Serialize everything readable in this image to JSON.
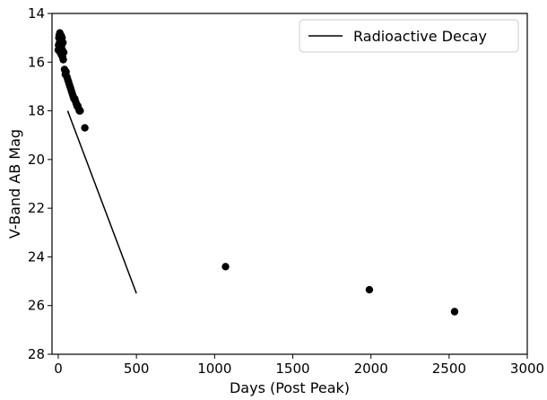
{
  "chart_data": {
    "type": "scatter",
    "title": "",
    "xlabel": "Days (Post Peak)",
    "ylabel": "V-Band AB Mag",
    "xlim": [
      -40,
      3000
    ],
    "ylim": [
      28,
      14
    ],
    "y_axis_inverted": true,
    "grid": false,
    "legend_position": "top-right",
    "x_ticks": [
      0,
      500,
      1000,
      1500,
      2000,
      2500,
      3000
    ],
    "y_ticks": [
      14,
      16,
      18,
      20,
      22,
      24,
      26,
      28
    ],
    "x_tick_labels": [
      "0",
      "500",
      "1000",
      "1500",
      "2000",
      "2500",
      "3000"
    ],
    "y_tick_labels": [
      "14",
      "16",
      "18",
      "20",
      "22",
      "24",
      "26",
      "28"
    ],
    "series": [
      {
        "kind": "scatter",
        "color": "#000000",
        "x": [
          0,
          2,
          4,
          6,
          8,
          10,
          12,
          14,
          16,
          18,
          20,
          22,
          24,
          26,
          28,
          30,
          32,
          35,
          40,
          45,
          50,
          55,
          60,
          65,
          70,
          75,
          80,
          85,
          90,
          95,
          100,
          105,
          110,
          115,
          120,
          125,
          130,
          135,
          140,
          170,
          1070,
          1990,
          2535
        ],
        "y": [
          15.5,
          15.3,
          15.0,
          14.9,
          15.2,
          14.8,
          15.6,
          15.1,
          15.4,
          14.9,
          15.7,
          15.3,
          15.0,
          15.5,
          15.8,
          15.2,
          15.9,
          15.6,
          16.3,
          16.5,
          16.4,
          16.6,
          16.7,
          16.8,
          16.9,
          17.0,
          17.1,
          17.2,
          17.3,
          17.4,
          17.5,
          17.5,
          17.6,
          17.7,
          17.8,
          17.8,
          17.9,
          18.0,
          18.0,
          18.7,
          24.4,
          25.35,
          26.25
        ]
      },
      {
        "kind": "line",
        "name": "Radioactive Decay",
        "color": "#000000",
        "x": [
          60,
          500
        ],
        "y": [
          18.0,
          25.5
        ]
      }
    ]
  }
}
